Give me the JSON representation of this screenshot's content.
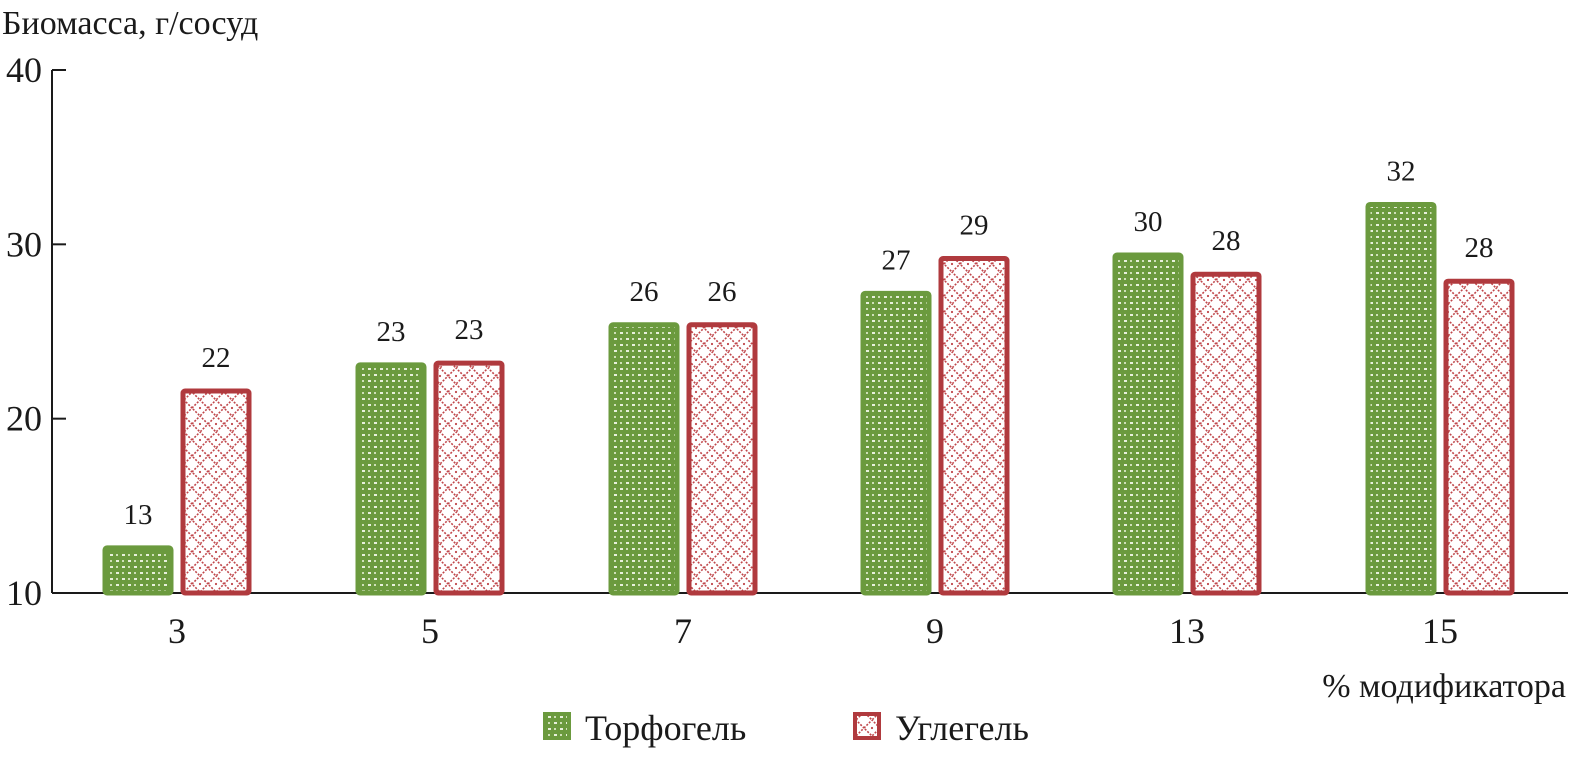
{
  "chart_data": {
    "type": "bar",
    "ylabel": "Биомасса, г/сосуд",
    "xlabel": "% модификатора",
    "categories": [
      "3",
      "5",
      "7",
      "9",
      "13",
      "15"
    ],
    "ylim": [
      10,
      40
    ],
    "yticks": [
      10,
      20,
      30,
      40
    ],
    "grid": false,
    "legend_position": "bottom",
    "series": [
      {
        "name": "Торфогель",
        "color": "#6b9a3e",
        "pattern": "dots",
        "values": [
          12.7,
          23.2,
          25.5,
          27.3,
          29.5,
          32.4
        ],
        "labels": [
          "13",
          "23",
          "26",
          "27",
          "30",
          "32"
        ]
      },
      {
        "name": "Углегель",
        "color": "#b03a3e",
        "pattern": "diamond-lattice",
        "values": [
          21.7,
          23.3,
          25.5,
          29.3,
          28.4,
          28.0
        ],
        "labels": [
          "22",
          "23",
          "26",
          "29",
          "28",
          "28"
        ]
      }
    ]
  }
}
